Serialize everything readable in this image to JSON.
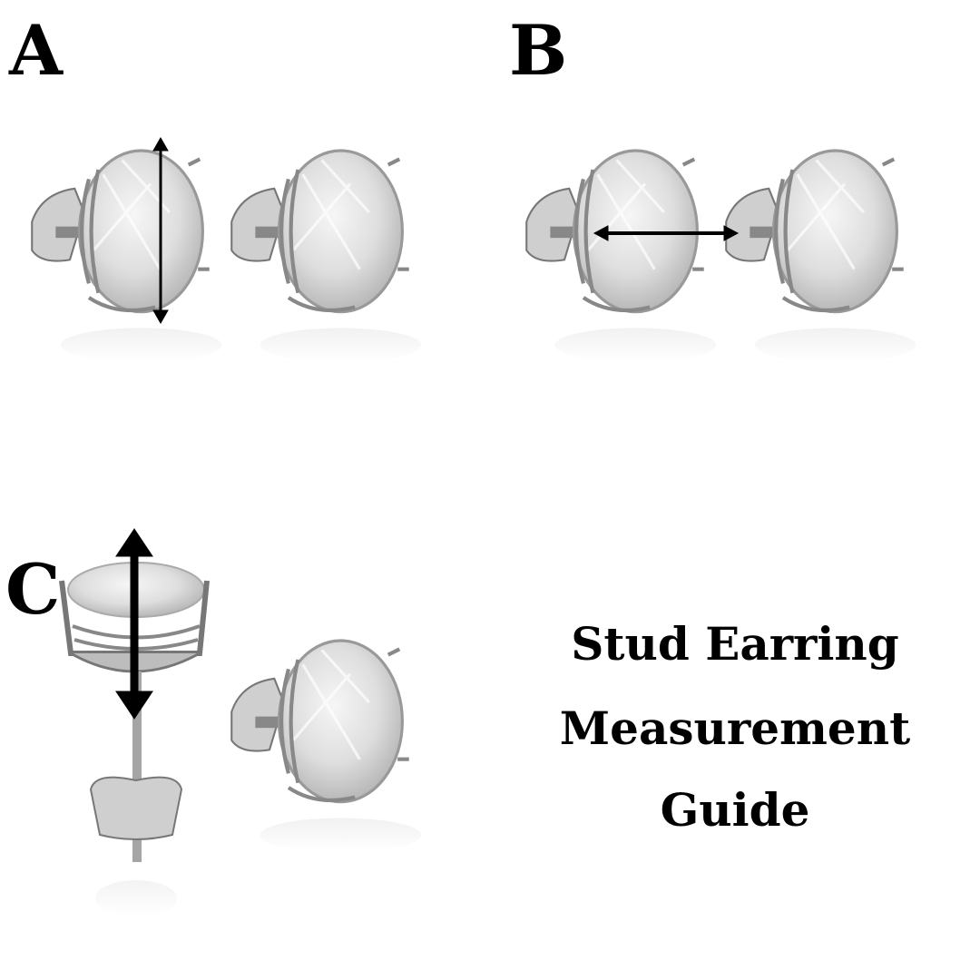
{
  "labels": {
    "a": "A",
    "b": "B",
    "c": "C"
  },
  "title": {
    "line1": "Stud Earring",
    "line2": "Measurement",
    "line3": "Guide"
  },
  "colors": {
    "arrow": "#000000",
    "metal": "#9a9a9a",
    "stone": "#e4e4e4"
  }
}
